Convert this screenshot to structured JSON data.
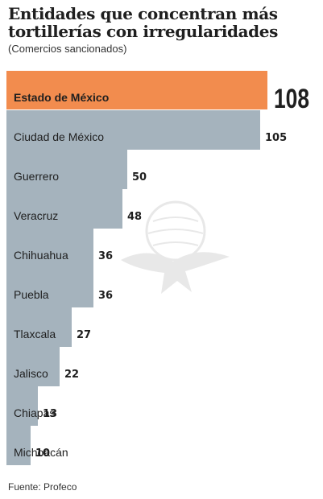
{
  "title": "Entidades que concentran más tortillerías con irregularidades",
  "subtitle": "(Comercios sancionados)",
  "source": "Fuente: Profeco",
  "colors": {
    "highlight": "#f28c4e",
    "bar": "#a5b3bd",
    "text": "#1f1f1f"
  },
  "watermark": "eagle-seal-icon",
  "chart_data": {
    "type": "bar",
    "orientation": "horizontal",
    "categories": [
      "Estado de México",
      "Ciudad de México",
      "Guerrero",
      "Veracruz",
      "Chihuahua",
      "Puebla",
      "Tlaxcala",
      "Jalisco",
      "Chiapas",
      "Michoacán"
    ],
    "values": [
      108,
      105,
      50,
      48,
      36,
      36,
      27,
      22,
      13,
      10
    ],
    "value_labels": [
      "108",
      "105",
      "50",
      "48",
      "36",
      "36",
      "27",
      "22",
      "13",
      "10"
    ],
    "highlight_index": 0,
    "xlim": [
      0,
      108
    ],
    "grid": false,
    "legend": "none"
  }
}
